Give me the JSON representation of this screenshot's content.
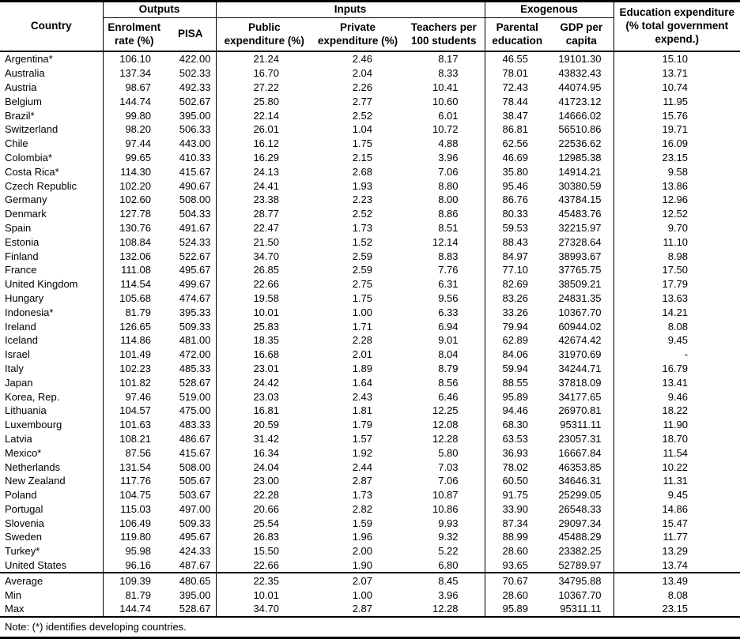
{
  "table": {
    "country_header": "Country",
    "groups": {
      "outputs": "Outputs",
      "inputs": "Inputs",
      "exogenous": "Exogenous"
    },
    "edu_exp_header": "Education expenditure (% total government expend.)",
    "columns": [
      "Enrolment rate (%)",
      "PISA",
      "Public expenditure (%)",
      "Private expenditure (%)",
      "Teachers per 100 students",
      "Parental education",
      "GDP per capita"
    ],
    "rows": [
      [
        "Argentina*",
        "106.10",
        "422.00",
        "21.24",
        "2.46",
        "8.17",
        "46.55",
        "19101.30",
        "15.10"
      ],
      [
        "Australia",
        "137.34",
        "502.33",
        "16.70",
        "2.04",
        "8.33",
        "78.01",
        "43832.43",
        "13.71"
      ],
      [
        "Austria",
        "98.67",
        "492.33",
        "27.22",
        "2.26",
        "10.41",
        "72.43",
        "44074.95",
        "10.74"
      ],
      [
        "Belgium",
        "144.74",
        "502.67",
        "25.80",
        "2.77",
        "10.60",
        "78.44",
        "41723.12",
        "11.95"
      ],
      [
        "Brazil*",
        "99.80",
        "395.00",
        "22.14",
        "2.52",
        "6.01",
        "38.47",
        "14666.02",
        "15.76"
      ],
      [
        "Switzerland",
        "98.20",
        "506.33",
        "26.01",
        "1.04",
        "10.72",
        "86.81",
        "56510.86",
        "19.71"
      ],
      [
        "Chile",
        "97.44",
        "443.00",
        "16.12",
        "1.75",
        "4.88",
        "62.56",
        "22536.62",
        "16.09"
      ],
      [
        "Colombia*",
        "99.65",
        "410.33",
        "16.29",
        "2.15",
        "3.96",
        "46.69",
        "12985.38",
        "23.15"
      ],
      [
        "Costa Rica*",
        "114.30",
        "415.67",
        "24.13",
        "2.68",
        "7.06",
        "35.80",
        "14914.21",
        "9.58"
      ],
      [
        "Czech Republic",
        "102.20",
        "490.67",
        "24.41",
        "1.93",
        "8.80",
        "95.46",
        "30380.59",
        "13.86"
      ],
      [
        "Germany",
        "102.60",
        "508.00",
        "23.38",
        "2.23",
        "8.00",
        "86.76",
        "43784.15",
        "12.96"
      ],
      [
        "Denmark",
        "127.78",
        "504.33",
        "28.77",
        "2.52",
        "8.86",
        "80.33",
        "45483.76",
        "12.52"
      ],
      [
        "Spain",
        "130.76",
        "491.67",
        "22.47",
        "1.73",
        "8.51",
        "59.53",
        "32215.97",
        "9.70"
      ],
      [
        "Estonia",
        "108.84",
        "524.33",
        "21.50",
        "1.52",
        "12.14",
        "88.43",
        "27328.64",
        "11.10"
      ],
      [
        "Finland",
        "132.06",
        "522.67",
        "34.70",
        "2.59",
        "8.83",
        "84.97",
        "38993.67",
        "8.98"
      ],
      [
        "France",
        "111.08",
        "495.67",
        "26.85",
        "2.59",
        "7.76",
        "77.10",
        "37765.75",
        "17.50"
      ],
      [
        "United Kingdom",
        "114.54",
        "499.67",
        "22.66",
        "2.75",
        "6.31",
        "82.69",
        "38509.21",
        "17.79"
      ],
      [
        "Hungary",
        "105.68",
        "474.67",
        "19.58",
        "1.75",
        "9.56",
        "83.26",
        "24831.35",
        "13.63"
      ],
      [
        "Indonesia*",
        "81.79",
        "395.33",
        "10.01",
        "1.00",
        "6.33",
        "33.26",
        "10367.70",
        "14.21"
      ],
      [
        "Ireland",
        "126.65",
        "509.33",
        "25.83",
        "1.71",
        "6.94",
        "79.94",
        "60944.02",
        "8.08"
      ],
      [
        "Iceland",
        "114.86",
        "481.00",
        "18.35",
        "2.28",
        "9.01",
        "62.89",
        "42674.42",
        "9.45"
      ],
      [
        "Israel",
        "101.49",
        "472.00",
        "16.68",
        "2.01",
        "8.04",
        "84.06",
        "31970.69",
        "-"
      ],
      [
        "Italy",
        "102.23",
        "485.33",
        "23.01",
        "1.89",
        "8.79",
        "59.94",
        "34244.71",
        "16.79"
      ],
      [
        "Japan",
        "101.82",
        "528.67",
        "24.42",
        "1.64",
        "8.56",
        "88.55",
        "37818.09",
        "13.41"
      ],
      [
        "Korea, Rep.",
        "97.46",
        "519.00",
        "23.03",
        "2.43",
        "6.46",
        "95.89",
        "34177.65",
        "9.46"
      ],
      [
        "Lithuania",
        "104.57",
        "475.00",
        "16.81",
        "1.81",
        "12.25",
        "94.46",
        "26970.81",
        "18.22"
      ],
      [
        "Luxembourg",
        "101.63",
        "483.33",
        "20.59",
        "1.79",
        "12.08",
        "68.30",
        "95311.11",
        "11.90"
      ],
      [
        "Latvia",
        "108.21",
        "486.67",
        "31.42",
        "1.57",
        "12.28",
        "63.53",
        "23057.31",
        "18.70"
      ],
      [
        "Mexico*",
        "87.56",
        "415.67",
        "16.34",
        "1.92",
        "5.80",
        "36.93",
        "16667.84",
        "11.54"
      ],
      [
        "Netherlands",
        "131.54",
        "508.00",
        "24.04",
        "2.44",
        "7.03",
        "78.02",
        "46353.85",
        "10.22"
      ],
      [
        "New Zealand",
        "117.76",
        "505.67",
        "23.00",
        "2.87",
        "7.06",
        "60.50",
        "34646.31",
        "11.31"
      ],
      [
        "Poland",
        "104.75",
        "503.67",
        "22.28",
        "1.73",
        "10.87",
        "91.75",
        "25299.05",
        "9.45"
      ],
      [
        "Portugal",
        "115.03",
        "497.00",
        "20.66",
        "2.82",
        "10.86",
        "33.90",
        "26548.33",
        "14.86"
      ],
      [
        "Slovenia",
        "106.49",
        "509.33",
        "25.54",
        "1.59",
        "9.93",
        "87.34",
        "29097.34",
        "15.47"
      ],
      [
        "Sweden",
        "119.80",
        "495.67",
        "26.83",
        "1.96",
        "9.32",
        "88.99",
        "45488.29",
        "11.77"
      ],
      [
        "Turkey*",
        "95.98",
        "424.33",
        "15.50",
        "2.00",
        "5.22",
        "28.60",
        "23382.25",
        "13.29"
      ],
      [
        "United States",
        "96.16",
        "487.67",
        "22.66",
        "1.90",
        "6.80",
        "93.65",
        "52789.97",
        "13.74"
      ]
    ],
    "summary": [
      [
        "Average",
        "109.39",
        "480.65",
        "22.35",
        "2.07",
        "8.45",
        "70.67",
        "34795.88",
        "13.49"
      ],
      [
        "Min",
        "81.79",
        "395.00",
        "10.01",
        "1.00",
        "3.96",
        "28.60",
        "10367.70",
        "8.08"
      ],
      [
        "Max",
        "144.74",
        "528.67",
        "34.70",
        "2.87",
        "12.28",
        "95.89",
        "95311.11",
        "23.15"
      ]
    ],
    "note": "Note: (*) identifies developing countries."
  }
}
